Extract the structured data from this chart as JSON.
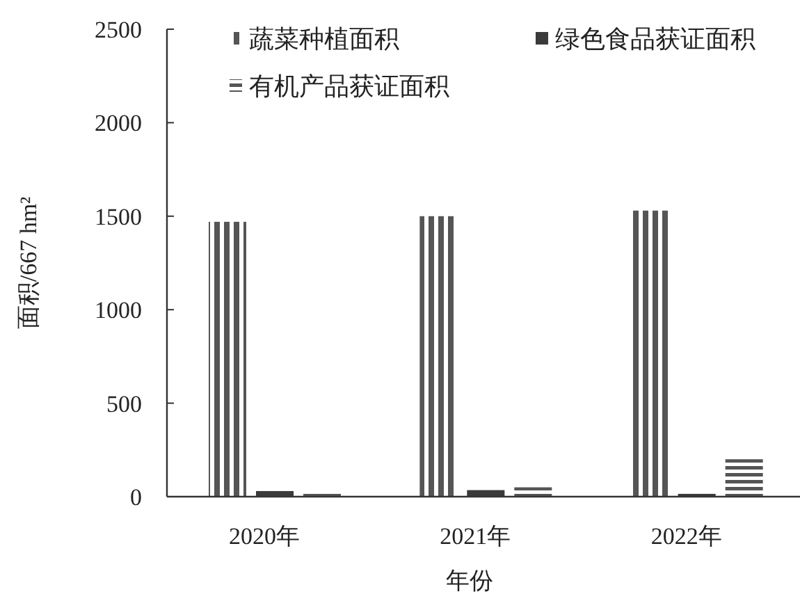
{
  "chart_data": {
    "type": "bar",
    "xlabel": "年份",
    "ylabel": "面积/667 hm²",
    "categories": [
      "2020年",
      "2021年",
      "2022年"
    ],
    "series": [
      {
        "name": "蔬菜种植面积",
        "color": "#555555",
        "values": [
          1470,
          1500,
          1530
        ]
      },
      {
        "name": "绿色食品获证面积",
        "color": "#3a3a3a",
        "values": [
          30,
          35,
          15
        ]
      },
      {
        "name": "有机产品获证面积",
        "color": "#555555",
        "values": [
          25,
          50,
          200
        ]
      }
    ],
    "ylim": [
      0,
      2500
    ],
    "yticks": [
      0,
      500,
      1000,
      1500,
      2000,
      2500
    ],
    "legend": "top",
    "grid": false
  }
}
